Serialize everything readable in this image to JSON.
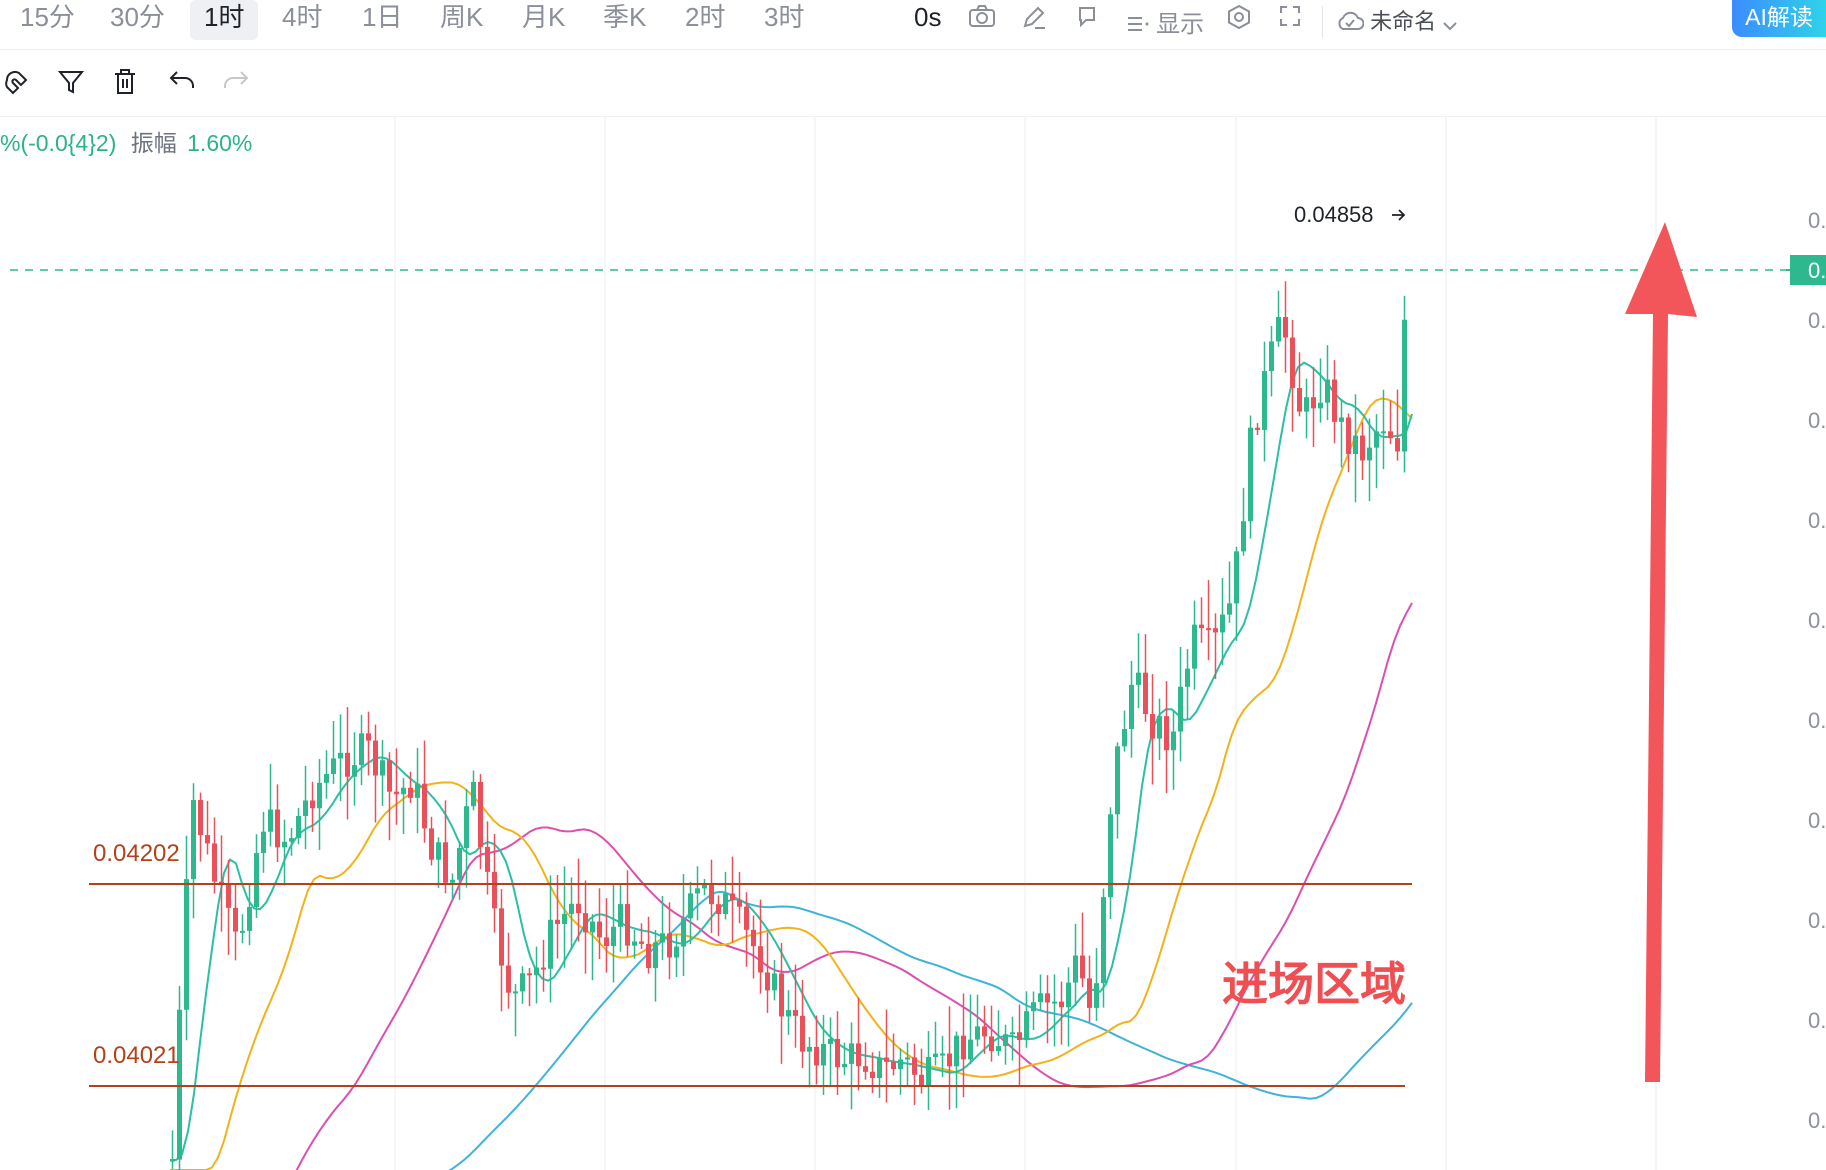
{
  "toolbar": {
    "timeframes": [
      "15分",
      "30分",
      "1时",
      "4时",
      "1日",
      "周K",
      "月K",
      "季K",
      "2时",
      "3时"
    ],
    "active_timeframe": "1时",
    "countdown": "0s",
    "display_label": "显示",
    "layout_name": "未命名",
    "ai_button": "AI解读"
  },
  "info_bar": {
    "change": "%(-0.0{4}2)",
    "amplitude_label": "振幅",
    "amplitude_value": "1.60%"
  },
  "chart": {
    "last_price_label": "0.04858",
    "zone_label": "进场区域",
    "levels": [
      {
        "label": "0.04202",
        "value": 0.04202
      },
      {
        "label": "0.04021",
        "value": 0.04021
      }
    ],
    "right_axis_labels": [
      "0.",
      "0.",
      "0.",
      "0.",
      "0.",
      "0.",
      "0.",
      "0.",
      "0.",
      "0.",
      "0."
    ],
    "current_price_tag": "0.",
    "colors": {
      "up": "#2db88d",
      "down": "#e9505a",
      "ma_fast": "#2bbfa5",
      "ma_mid": "#f2b21b",
      "ma_slow": "#dd4fae",
      "ma_long": "#3fb3d8",
      "level_line": "#b3411b",
      "arrow": "#f2555a"
    }
  }
}
